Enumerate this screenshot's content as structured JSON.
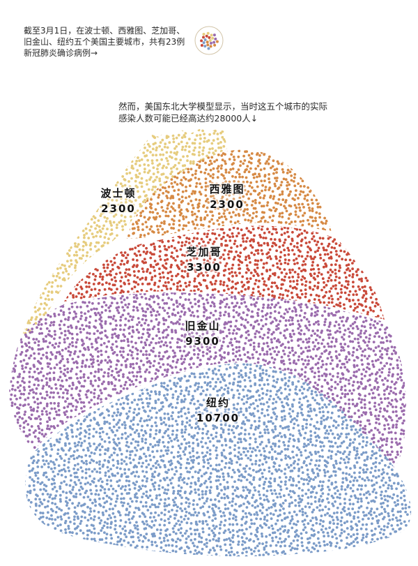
{
  "intro_text": "截至3月1日，在波士顿、西雅图、芝加哥、旧金山、纽约五个美国主要城市，共有23例新冠肺炎确诊病例→",
  "note_text": "然而，美国东北大学模型显示，当时这五个城市的实际感染人数可能已经高达约28000人↓",
  "legend": {
    "confirmed_count": 23
  },
  "chart_data": {
    "type": "dot-area",
    "title": "",
    "unit": "人",
    "total_estimated": 28000,
    "confirmed_total": 23,
    "series": [
      {
        "name": "波士顿",
        "value": 2300,
        "label": "2300",
        "color": "#e6cc7e"
      },
      {
        "name": "西雅图",
        "value": 2300,
        "label": "2300",
        "color": "#d68a45"
      },
      {
        "name": "芝加哥",
        "value": 3300,
        "label": "3300",
        "color": "#c94a3a"
      },
      {
        "name": "旧金山",
        "value": 9300,
        "label": "9300",
        "color": "#9b6cad"
      },
      {
        "name": "纽约",
        "value": 10700,
        "label": "10700",
        "color": "#7c9cc8"
      }
    ]
  }
}
